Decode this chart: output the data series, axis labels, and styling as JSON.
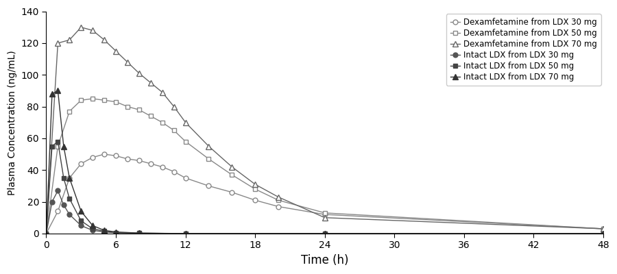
{
  "title": "",
  "xlabel": "Time (h)",
  "ylabel": "Plasma Concentration (ng/mL)",
  "xlim": [
    0,
    48
  ],
  "ylim": [
    0,
    140
  ],
  "yticks": [
    0,
    20,
    40,
    60,
    80,
    100,
    120,
    140
  ],
  "xticks": [
    0,
    6,
    12,
    18,
    24,
    30,
    36,
    42,
    48
  ],
  "series": [
    {
      "label": "Dexamfetamine from LDX 30 mg",
      "color": "#888888",
      "marker": "o",
      "filled": false,
      "linewidth": 1.0,
      "markersize": 5,
      "x": [
        0,
        1,
        2,
        3,
        4,
        5,
        6,
        7,
        8,
        9,
        10,
        11,
        12,
        14,
        16,
        18,
        20,
        24,
        48
      ],
      "y": [
        0,
        14,
        35,
        44,
        48,
        50,
        49,
        47,
        46,
        44,
        42,
        39,
        35,
        30,
        26,
        21,
        17,
        12,
        3
      ]
    },
    {
      "label": "Dexamfetamine from LDX 50 mg",
      "color": "#888888",
      "marker": "s",
      "filled": false,
      "linewidth": 1.0,
      "markersize": 5,
      "x": [
        0,
        1,
        2,
        3,
        4,
        5,
        6,
        7,
        8,
        9,
        10,
        11,
        12,
        14,
        16,
        18,
        20,
        24,
        48
      ],
      "y": [
        0,
        55,
        77,
        84,
        85,
        84,
        83,
        80,
        78,
        74,
        70,
        65,
        58,
        47,
        37,
        28,
        21,
        13,
        3
      ]
    },
    {
      "label": "Dexamfetamine from LDX 70 mg",
      "color": "#666666",
      "marker": "^",
      "filled": false,
      "linewidth": 1.0,
      "markersize": 6,
      "x": [
        0,
        1,
        2,
        3,
        4,
        5,
        6,
        7,
        8,
        9,
        10,
        11,
        12,
        14,
        16,
        18,
        20,
        24,
        48
      ],
      "y": [
        0,
        120,
        122,
        130,
        128,
        122,
        115,
        108,
        101,
        95,
        89,
        80,
        70,
        55,
        42,
        31,
        23,
        10,
        3
      ]
    },
    {
      "label": "Intact LDX from LDX 30 mg",
      "color": "#555555",
      "marker": "o",
      "filled": true,
      "linewidth": 1.0,
      "markersize": 5,
      "x": [
        0,
        0.5,
        1.0,
        1.5,
        2.0,
        3.0,
        4.0,
        5.0,
        6.0,
        8.0,
        12.0,
        24.0,
        48.0
      ],
      "y": [
        0,
        20,
        27,
        18,
        12,
        5,
        2,
        1,
        0.5,
        0.2,
        0,
        0,
        0
      ]
    },
    {
      "label": "Intact LDX from LDX 50 mg",
      "color": "#444444",
      "marker": "s",
      "filled": true,
      "linewidth": 1.0,
      "markersize": 5,
      "x": [
        0,
        0.5,
        1.0,
        1.5,
        2.0,
        3.0,
        4.0,
        5.0,
        6.0,
        8.0,
        12.0,
        24.0,
        48.0
      ],
      "y": [
        0,
        55,
        58,
        35,
        22,
        8,
        3,
        1.5,
        0.5,
        0.2,
        0,
        0,
        0
      ]
    },
    {
      "label": "Intact LDX from LDX 70 mg",
      "color": "#333333",
      "marker": "^",
      "filled": true,
      "linewidth": 1.0,
      "markersize": 6,
      "x": [
        0,
        0.5,
        1.0,
        1.5,
        2.0,
        3.0,
        4.0,
        5.0,
        6.0,
        8.0,
        12.0,
        24.0,
        48.0
      ],
      "y": [
        0,
        88,
        90,
        55,
        35,
        14,
        5,
        2,
        1,
        0.3,
        0,
        0,
        0
      ]
    }
  ],
  "legend_loc": "upper right",
  "background_color": "#ffffff",
  "line_color": "#555555",
  "grid": false,
  "figsize": [
    9.0,
    4.0
  ],
  "dpi": 100
}
